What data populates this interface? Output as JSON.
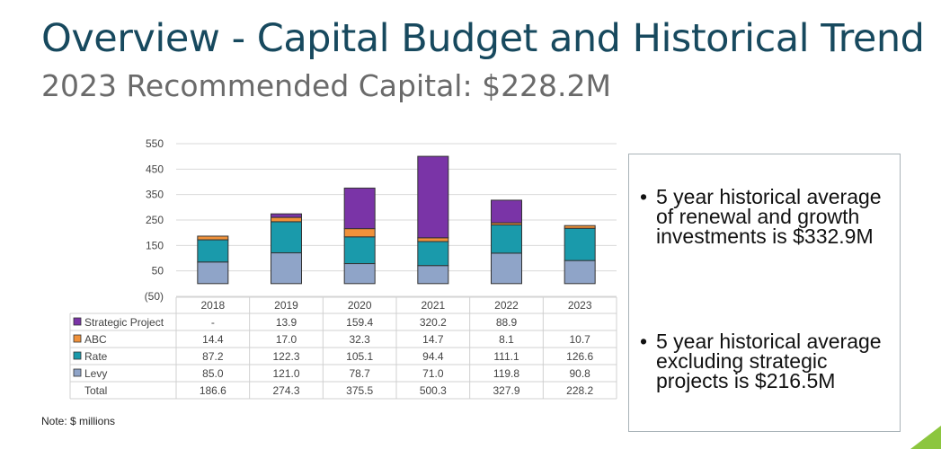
{
  "slide": {
    "title": "Overview - Capital Budget and Historical Trend",
    "subtitle": "2023 Recommended Capital: $228.2M",
    "note": "Note: $ millions",
    "accent_color": "#8cc63f"
  },
  "callout": {
    "bullets": [
      "5 year historical average of renewal and growth investments is $332.9M",
      "5 year historical average excluding strategic projects is $216.5M"
    ]
  },
  "chart_data": {
    "type": "bar",
    "stacked": true,
    "categories": [
      "2018",
      "2019",
      "2020",
      "2021",
      "2022",
      "2023"
    ],
    "y_ticks": [
      "550",
      "450",
      "350",
      "250",
      "150",
      "50",
      "(50)"
    ],
    "ylim": [
      -50,
      550
    ],
    "grid": true,
    "series": [
      {
        "name": "Levy",
        "color": "#8fa4c8",
        "values": [
          85.0,
          121.0,
          78.7,
          71.0,
          119.8,
          90.8
        ],
        "labels": [
          "85.0",
          "121.0",
          "78.7",
          "71.0",
          "119.8",
          "90.8"
        ]
      },
      {
        "name": "Rate",
        "color": "#1a9aab",
        "values": [
          87.2,
          122.3,
          105.1,
          94.4,
          111.1,
          126.6
        ],
        "labels": [
          "87.2",
          "122.3",
          "105.1",
          "94.4",
          "111.1",
          "126.6"
        ]
      },
      {
        "name": "ABC",
        "color": "#f0913a",
        "values": [
          14.4,
          17.0,
          32.3,
          14.7,
          8.1,
          10.7
        ],
        "labels": [
          "14.4",
          "17.0",
          "32.3",
          "14.7",
          "8.1",
          "10.7"
        ]
      },
      {
        "name": "Strategic Project",
        "color": "#7a34a7",
        "values": [
          0,
          13.9,
          159.4,
          320.2,
          88.9,
          0
        ],
        "labels": [
          "-",
          "13.9",
          "159.4",
          "320.2",
          "88.9",
          ""
        ]
      }
    ],
    "table_rows": [
      {
        "name": "Strategic Project",
        "series_index": 3,
        "cells": [
          "-",
          "13.9",
          "159.4",
          "320.2",
          "88.9",
          ""
        ]
      },
      {
        "name": "ABC",
        "series_index": 2,
        "cells": [
          "14.4",
          "17.0",
          "32.3",
          "14.7",
          "8.1",
          "10.7"
        ]
      },
      {
        "name": "Rate",
        "series_index": 1,
        "cells": [
          "87.2",
          "122.3",
          "105.1",
          "94.4",
          "111.1",
          "126.6"
        ]
      },
      {
        "name": "Levy",
        "series_index": 0,
        "cells": [
          "85.0",
          "121.0",
          "78.7",
          "71.0",
          "119.8",
          "90.8"
        ]
      },
      {
        "name": "Total",
        "series_index": null,
        "cells": [
          "186.6",
          "274.3",
          "375.5",
          "500.3",
          "327.9",
          "228.2"
        ]
      }
    ]
  }
}
